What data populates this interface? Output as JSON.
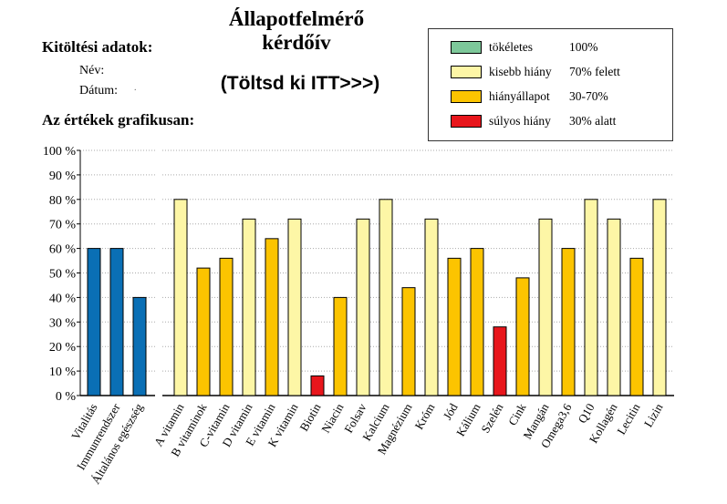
{
  "header": {
    "title_line1": "Állapotfelmérő",
    "title_line2": "kérdőív",
    "instruction": "(Töltsd ki ITT>>>)"
  },
  "form": {
    "heading": "Kitöltési adatok:",
    "name_label": "Név:",
    "date_label": "Dátum:",
    "date_value": "."
  },
  "graph_heading": "Az értékek grafikusan:",
  "legend": {
    "items": [
      {
        "label": "tökéletes",
        "range": "100%",
        "color": "#7dc89a"
      },
      {
        "label": "kisebb hiány",
        "range": "70% felett",
        "color": "#fdf6a6"
      },
      {
        "label": "hiányállapot",
        "range": "30-70%",
        "color": "#fcc400"
      },
      {
        "label": "súlyos hiány",
        "range": "30% alatt",
        "color": "#e8161c"
      }
    ]
  },
  "chart_data": {
    "type": "bar",
    "ylim": [
      0,
      100
    ],
    "yticks": [
      0,
      10,
      20,
      30,
      40,
      50,
      60,
      70,
      80,
      90,
      100
    ],
    "ytick_labels": [
      "0 %",
      "10 %",
      "20 %",
      "30 %",
      "40 %",
      "50 %",
      "60 %",
      "70 %",
      "80 %",
      "90 %",
      "100 %"
    ],
    "grid": true,
    "groups": [
      {
        "name": "general",
        "color": "#0a6fb5",
        "categories": [
          "Vitalitás",
          "Immunrendszer",
          "Általános egészség"
        ],
        "values": [
          60,
          60,
          40
        ]
      },
      {
        "name": "nutrients",
        "color_rule": "legend",
        "categories": [
          "A vitamin",
          "B vitaminok",
          "C-vitamin",
          "D vitamin",
          "E vitamin",
          "K vitamin",
          "Biotin",
          "Niacin",
          "Folsav",
          "Kalcium",
          "Magnézium",
          "Króm",
          "Jód",
          "Kálium",
          "Szelén",
          "Cink",
          "Mangán",
          "Omega3,6",
          "Q10",
          "Kollagén",
          "Lecitin",
          "Lizin"
        ],
        "values": [
          80,
          52,
          56,
          72,
          64,
          72,
          8,
          40,
          72,
          80,
          44,
          72,
          56,
          60,
          28,
          48,
          72,
          60,
          80,
          72,
          56,
          80
        ]
      }
    ]
  }
}
